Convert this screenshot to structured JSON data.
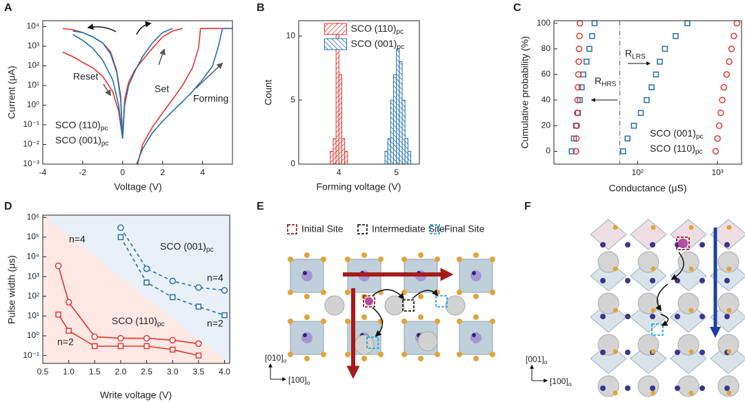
{
  "chart_data": [
    {
      "type": "line",
      "label": "A",
      "xlabel": "Voltage (V)",
      "ylabel": "Current (μA)",
      "xlim": [
        -4,
        5.5
      ],
      "ylim": [
        0.001,
        20000
      ],
      "ylog": true,
      "xticks": [
        -4,
        -2,
        0,
        2,
        4
      ],
      "yticks": [
        {
          "value": 0.001,
          "label": "10⁻³"
        },
        {
          "value": 0.01,
          "label": "10⁻²"
        },
        {
          "value": 0.1,
          "label": "10⁻¹"
        },
        {
          "value": 1,
          "label": "10⁰"
        },
        {
          "value": 10,
          "label": "10¹"
        },
        {
          "value": 100,
          "label": "10²"
        },
        {
          "value": 1000,
          "label": "10³"
        },
        {
          "value": 10000,
          "label": "10⁴"
        }
      ],
      "legend": "lower-left",
      "annotations": [
        "Reset",
        "Set",
        "Forming"
      ],
      "series": [
        {
          "name": "SCO (110)pc",
          "color": "#e8322b",
          "x": [
            -3,
            -2.5,
            -2,
            -1.5,
            -1,
            -0.6,
            -0.3,
            -0.1,
            0,
            null,
            -3,
            -2.5,
            -2,
            -1.5,
            -1,
            -0.5,
            -0.2,
            0,
            null,
            0,
            0.1,
            0.3,
            0.6,
            1,
            1.5,
            2,
            2.5,
            3,
            null,
            0.75,
            1,
            1.5,
            2,
            2.5,
            3,
            3.5,
            3.8,
            3.9,
            5.5
          ],
          "values": [
            8000,
            7000,
            5000,
            3000,
            1500,
            500,
            60,
            3,
            0.02,
            null,
            500,
            300,
            150,
            80,
            30,
            5,
            0.5,
            0.02,
            null,
            0.02,
            2,
            15,
            60,
            200,
            800,
            3000,
            6000,
            8000,
            null,
            0.001,
            0.01,
            0.08,
            0.4,
            2,
            10,
            80,
            800,
            8000,
            8000
          ]
        },
        {
          "name": "SCO (001)pc",
          "color": "#1f6fb0",
          "x": [
            -2.5,
            -2,
            -1.5,
            -1,
            -0.6,
            -0.3,
            -0.1,
            0,
            null,
            -2.5,
            -2,
            -1.5,
            -1,
            -0.5,
            -0.2,
            0,
            null,
            0,
            0.1,
            0.3,
            0.6,
            1,
            1.5,
            2,
            2.5,
            null,
            0.7,
            1,
            1.5,
            2,
            2.5,
            3,
            3.5,
            4,
            4.5,
            4.8,
            5,
            5.5
          ],
          "values": [
            6000,
            5000,
            3000,
            1500,
            400,
            50,
            2,
            0.02,
            null,
            4000,
            2000,
            800,
            200,
            20,
            1,
            0.02,
            null,
            0.02,
            1,
            10,
            50,
            300,
            1500,
            5000,
            8000,
            null,
            0.001,
            0.006,
            0.04,
            0.15,
            0.5,
            1.5,
            5,
            20,
            100,
            1000,
            8000,
            8000
          ]
        }
      ]
    },
    {
      "type": "histogram",
      "label": "B",
      "xlabel": "Forming voltage (V)",
      "ylabel": "Count",
      "xlim": [
        3.3,
        5.4
      ],
      "ylim": [
        0,
        11.2
      ],
      "xticks": [
        4,
        5
      ],
      "yticks": [
        0,
        5,
        10
      ],
      "legend": "upper-center",
      "series": [
        {
          "name": "SCO (110)pc",
          "color": "#e8322b",
          "bins": [
            3.85,
            3.9,
            3.95,
            4.0,
            4.05,
            4.1,
            4.15
          ],
          "values": [
            1,
            2,
            11,
            7,
            2,
            1
          ]
        },
        {
          "name": "SCO (001)pc",
          "color": "#1f6fb0",
          "bins": [
            4.8,
            4.85,
            4.9,
            4.95,
            5.0,
            5.05,
            5.1,
            5.15,
            5.2,
            5.25
          ],
          "values": [
            1,
            2,
            5,
            7,
            9,
            8,
            5,
            2,
            1
          ]
        }
      ]
    },
    {
      "type": "scatter",
      "label": "C",
      "xlabel": "Conductance (μS)",
      "ylabel": "Cumulative probability (%)",
      "xlim": [
        9,
        2000
      ],
      "xlog": true,
      "ylim": [
        -10,
        102
      ],
      "xticks": [
        {
          "value": 100,
          "label": "10²"
        },
        {
          "value": 1000,
          "label": "10³"
        }
      ],
      "yticks": [
        0,
        20,
        40,
        60,
        80,
        100
      ],
      "vline_x": 60,
      "legend": "lower-right",
      "annotations": [
        {
          "text": "R",
          "sub": "LRS"
        },
        {
          "text": "R",
          "sub": "HRS"
        }
      ],
      "series": [
        {
          "name": "SCO (001)pc",
          "color": "#1f6fb0",
          "marker": "square",
          "x": [
            15,
            16,
            17,
            18,
            19,
            20,
            21,
            23,
            25,
            27,
            29,
            66,
            75,
            90,
            110,
            130,
            150,
            170,
            190,
            220,
            300,
            420
          ],
          "values": [
            0,
            10,
            20,
            30,
            40,
            50,
            60,
            70,
            80,
            90,
            100,
            0,
            10,
            20,
            30,
            40,
            50,
            60,
            70,
            80,
            90,
            100
          ]
        },
        {
          "name": "SCO (110)pc",
          "color": "#e8322b",
          "marker": "circle",
          "x": [
            17,
            17.2,
            17.4,
            17.6,
            17.8,
            18,
            18.2,
            18.4,
            18.6,
            18.8,
            19,
            950,
            1000,
            1050,
            1100,
            1150,
            1200,
            1300,
            1400,
            1500,
            1600,
            1750
          ],
          "values": [
            0,
            10,
            20,
            30,
            40,
            50,
            60,
            70,
            80,
            90,
            100,
            0,
            10,
            20,
            30,
            40,
            50,
            60,
            70,
            80,
            90,
            100
          ]
        }
      ]
    },
    {
      "type": "line",
      "label": "D",
      "xlabel": "Write voltage (V)",
      "ylabel": "Pulse width (μs)",
      "xlim": [
        0.5,
        4.1
      ],
      "ylim": [
        0.04,
        1300000
      ],
      "ylog": true,
      "xticks": [
        0.5,
        {
          "value": 1,
          "label": "1.0"
        },
        1.5,
        {
          "value": 2,
          "label": "2.0"
        },
        2.5,
        {
          "value": 3,
          "label": "3.0"
        },
        3.5,
        {
          "value": 4,
          "label": "4.0"
        }
      ],
      "yticks": [
        {
          "value": 0.1,
          "label": "10⁻¹"
        },
        {
          "value": 1,
          "label": "10⁰"
        },
        {
          "value": 10,
          "label": "10¹"
        },
        {
          "value": 100,
          "label": "10²"
        },
        {
          "value": 1000,
          "label": "10³"
        },
        {
          "value": 10000,
          "label": "10⁴"
        },
        {
          "value": 100000,
          "label": "10⁵"
        },
        {
          "value": 1000000,
          "label": "10⁶"
        }
      ],
      "legend": "series-labels",
      "annotations": [
        {
          "text": "SCO (110)pc",
          "color": "#e8322b"
        },
        {
          "text": "SCO (001)pc",
          "color": "#1f6fb0"
        }
      ],
      "series": [
        {
          "name": "n=4",
          "color": "#e8322b",
          "marker": "circle",
          "x": [
            0.8,
            1.0,
            1.5,
            2.0,
            2.5,
            3.0,
            3.5
          ],
          "values": [
            3500,
            50,
            0.9,
            0.75,
            0.75,
            0.6,
            0.4
          ]
        },
        {
          "name": "n=2",
          "color": "#e8322b",
          "marker": "square",
          "x": [
            0.8,
            1.0,
            1.5,
            2.0,
            2.5,
            3.0,
            3.5
          ],
          "values": [
            12,
            1.8,
            0.3,
            0.3,
            0.3,
            0.2,
            0.1
          ]
        },
        {
          "name": "n=4",
          "color": "#1f6fb0",
          "marker": "circle",
          "dashed": true,
          "x": [
            2.0,
            2.5,
            3.0,
            3.5,
            4.0
          ],
          "values": [
            300000,
            2500,
            600,
            280,
            200
          ]
        },
        {
          "name": "n=2",
          "color": "#1f6fb0",
          "marker": "square",
          "dashed": true,
          "x": [
            2.0,
            2.5,
            3.0,
            3.5,
            4.0
          ],
          "values": [
            100000,
            500,
            90,
            30,
            11
          ]
        }
      ]
    }
  ],
  "diagrams": [
    {
      "label": "E",
      "legend": [
        "Initial Site",
        "Intermediate Site",
        "Final Site"
      ],
      "axes": [
        "[010]o",
        "[100]o"
      ]
    },
    {
      "label": "F",
      "axes": [
        "[001]o",
        "[100]o"
      ]
    }
  ]
}
